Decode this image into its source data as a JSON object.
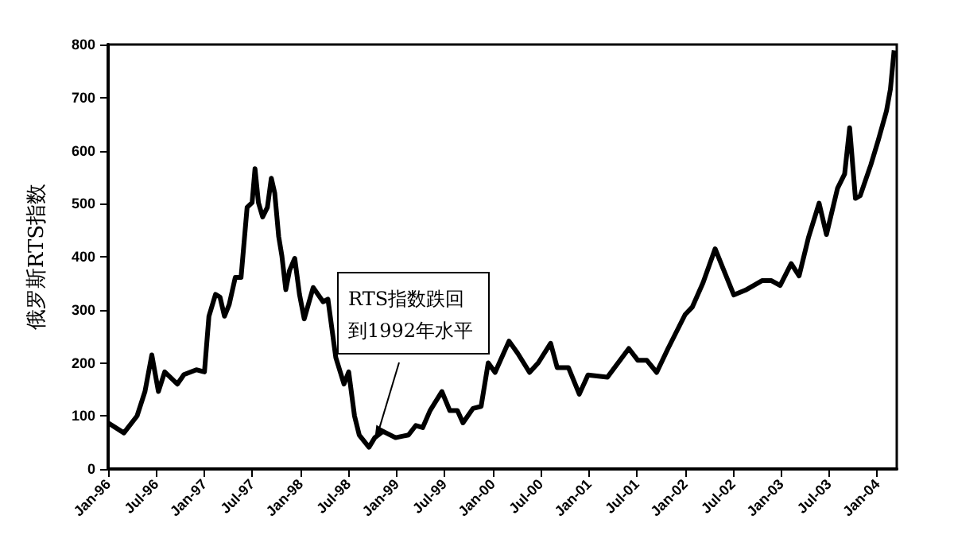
{
  "chart_data": {
    "type": "line",
    "ylabel": "俄罗斯RTS指数",
    "x": [
      "1996-01-01",
      "1996-03-01",
      "1996-04-20",
      "1996-05-20",
      "1996-06-15",
      "1996-07-10",
      "1996-08-03",
      "1996-09-20",
      "1996-10-15",
      "1996-12-01",
      "1997-01-01",
      "1997-01-18",
      "1997-02-12",
      "1997-03-01",
      "1997-03-18",
      "1997-04-05",
      "1997-04-28",
      "1997-05-20",
      "1997-06-12",
      "1997-07-01",
      "1997-07-12",
      "1997-07-25",
      "1997-08-10",
      "1997-08-28",
      "1997-09-12",
      "1997-09-25",
      "1997-10-10",
      "1997-10-22",
      "1997-11-06",
      "1997-11-20",
      "1997-12-10",
      "1997-12-28",
      "1998-01-15",
      "1998-02-18",
      "1998-03-28",
      "1998-04-15",
      "1998-05-15",
      "1998-06-15",
      "1998-07-03",
      "1998-07-25",
      "1998-08-12",
      "1998-09-18",
      "1998-10-10",
      "1998-11-10",
      "1998-12-28",
      "1999-02-15",
      "1999-03-15",
      "1999-04-10",
      "1999-05-08",
      "1999-06-22",
      "1999-07-22",
      "1999-08-20",
      "1999-09-10",
      "1999-10-18",
      "1999-11-18",
      "1999-12-15",
      "2000-01-10",
      "2000-03-03",
      "2000-04-05",
      "2000-05-20",
      "2000-06-22",
      "2000-08-08",
      "2000-09-02",
      "2000-10-15",
      "2000-11-25",
      "2000-12-28",
      "2001-03-12",
      "2001-06-01",
      "2001-07-05",
      "2001-08-08",
      "2001-09-15",
      "2001-10-28",
      "2002-01-01",
      "2002-01-28",
      "2002-03-10",
      "2002-04-25",
      "2002-05-25",
      "2002-07-05",
      "2002-08-18",
      "2002-10-20",
      "2002-11-25",
      "2002-12-28",
      "2003-02-08",
      "2003-03-10",
      "2003-04-15",
      "2003-05-25",
      "2003-06-22",
      "2003-08-03",
      "2003-08-30",
      "2003-09-18",
      "2003-10-10",
      "2003-10-28",
      "2003-12-08",
      "2004-01-05",
      "2004-02-05",
      "2004-02-20",
      "2004-03-05"
    ],
    "series": [
      {
        "color": "#000000",
        "values": [
          87,
          68,
          100,
          146,
          215,
          146,
          183,
          160,
          178,
          187,
          183,
          288,
          329,
          324,
          288,
          310,
          361,
          361,
          493,
          502,
          566,
          502,
          475,
          493,
          548,
          520,
          438,
          402,
          338,
          374,
          397,
          329,
          283,
          342,
          315,
          320,
          210,
          160,
          183,
          100,
          64,
          41,
          59,
          71,
          59,
          64,
          82,
          78,
          110,
          146,
          110,
          110,
          87,
          114,
          118,
          200,
          182,
          241,
          218,
          182,
          200,
          237,
          191,
          191,
          141,
          177,
          173,
          227,
          205,
          205,
          182,
          227,
          291,
          305,
          351,
          415,
          378,
          328,
          337,
          355,
          355,
          346,
          387,
          364,
          437,
          501,
          442,
          529,
          556,
          643,
          510,
          515,
          574,
          620,
          675,
          716,
          789
        ]
      }
    ],
    "xlim": [
      "1996-01-01",
      "2004-03-15"
    ],
    "xticks": [
      {
        "value": "1996-01-01",
        "label": "Jan-96"
      },
      {
        "value": "1996-07-01",
        "label": "Jul-96"
      },
      {
        "value": "1997-01-01",
        "label": "Jan-97"
      },
      {
        "value": "1997-07-01",
        "label": "Jul-97"
      },
      {
        "value": "1998-01-01",
        "label": "Jan-98"
      },
      {
        "value": "1998-07-01",
        "label": "Jul-98"
      },
      {
        "value": "1999-01-01",
        "label": "Jan-99"
      },
      {
        "value": "1999-07-01",
        "label": "Jul-99"
      },
      {
        "value": "2000-01-01",
        "label": "Jan-00"
      },
      {
        "value": "2000-07-01",
        "label": "Jul-00"
      },
      {
        "value": "2001-01-01",
        "label": "Jan-01"
      },
      {
        "value": "2001-07-01",
        "label": "Jul-01"
      },
      {
        "value": "2002-01-01",
        "label": "Jan-02"
      },
      {
        "value": "2002-07-01",
        "label": "Jul-02"
      },
      {
        "value": "2003-01-01",
        "label": "Jan-03"
      },
      {
        "value": "2003-07-01",
        "label": "Jul-03"
      },
      {
        "value": "2004-01-01",
        "label": "Jan-04"
      }
    ],
    "ylim": [
      0,
      800
    ],
    "yticks": [
      0,
      100,
      200,
      300,
      400,
      500,
      600,
      700,
      800
    ],
    "grid": false,
    "marker": "none",
    "line_style": "solid",
    "annotations": [
      {
        "text": "RTS指数跌回到1992年水平",
        "x": "1998-10-10",
        "y": 59
      }
    ]
  }
}
